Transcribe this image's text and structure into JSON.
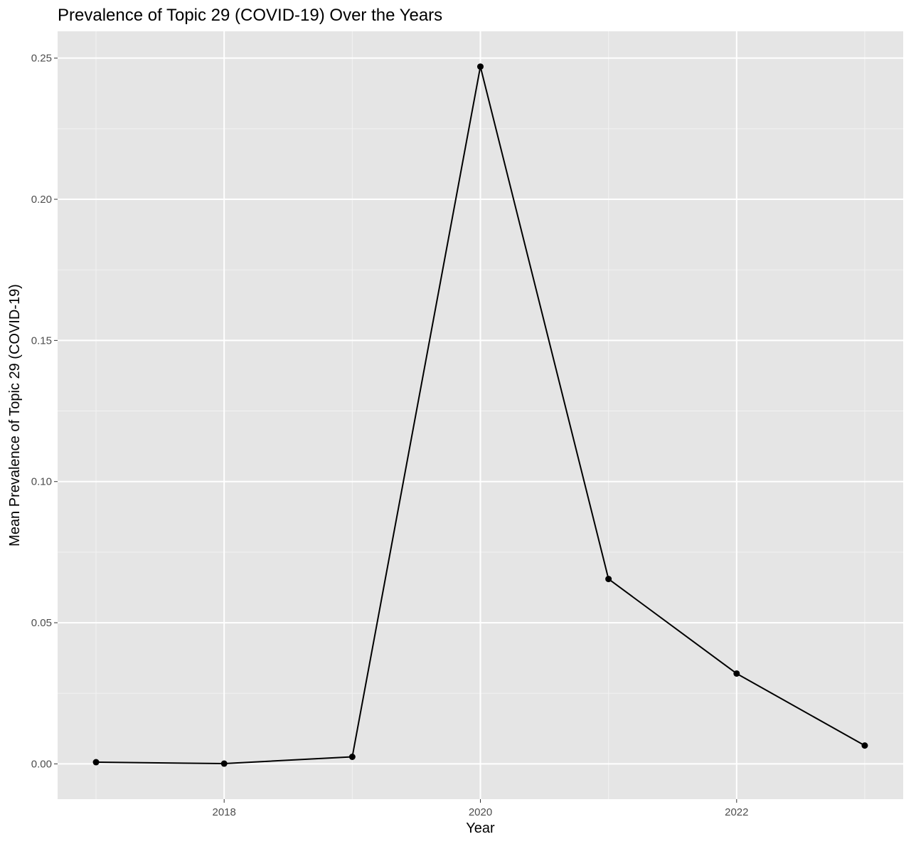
{
  "chart_data": {
    "type": "line",
    "title": "Prevalence of Topic 29 (COVID-19) Over the Years",
    "xlabel": "Year",
    "ylabel": "Mean Prevalence of Topic 29 (COVID-19)",
    "x": [
      2017,
      2018,
      2019,
      2020,
      2021,
      2022,
      2023
    ],
    "series": [
      {
        "values": [
          0.0006,
          0.0001,
          0.0025,
          0.247,
          0.0655,
          0.032,
          0.0065
        ]
      }
    ],
    "xlim": [
      2016.7,
      2023.3
    ],
    "ylim": [
      -0.0125,
      0.2595
    ],
    "x_ticks": [
      2018,
      2020,
      2022
    ],
    "x_tick_labels": [
      "2018",
      "2020",
      "2022"
    ],
    "x_minor_ticks": [
      2017,
      2019,
      2021,
      2023
    ],
    "y_ticks": [
      0,
      0.05,
      0.1,
      0.15,
      0.2,
      0.25
    ],
    "y_tick_labels": [
      "0.00",
      "0.05",
      "0.10",
      "0.15",
      "0.20",
      "0.25"
    ],
    "y_minor_ticks": [
      0.025,
      0.075,
      0.125,
      0.175,
      0.225
    ],
    "grid": true,
    "legend": "none",
    "colors": {
      "panel_background": "#e5e5e5",
      "grid_major": "#ffffff",
      "grid_minor": "#f2f2f2",
      "line": "#000000",
      "point": "#000000",
      "tick": "#333333"
    }
  }
}
